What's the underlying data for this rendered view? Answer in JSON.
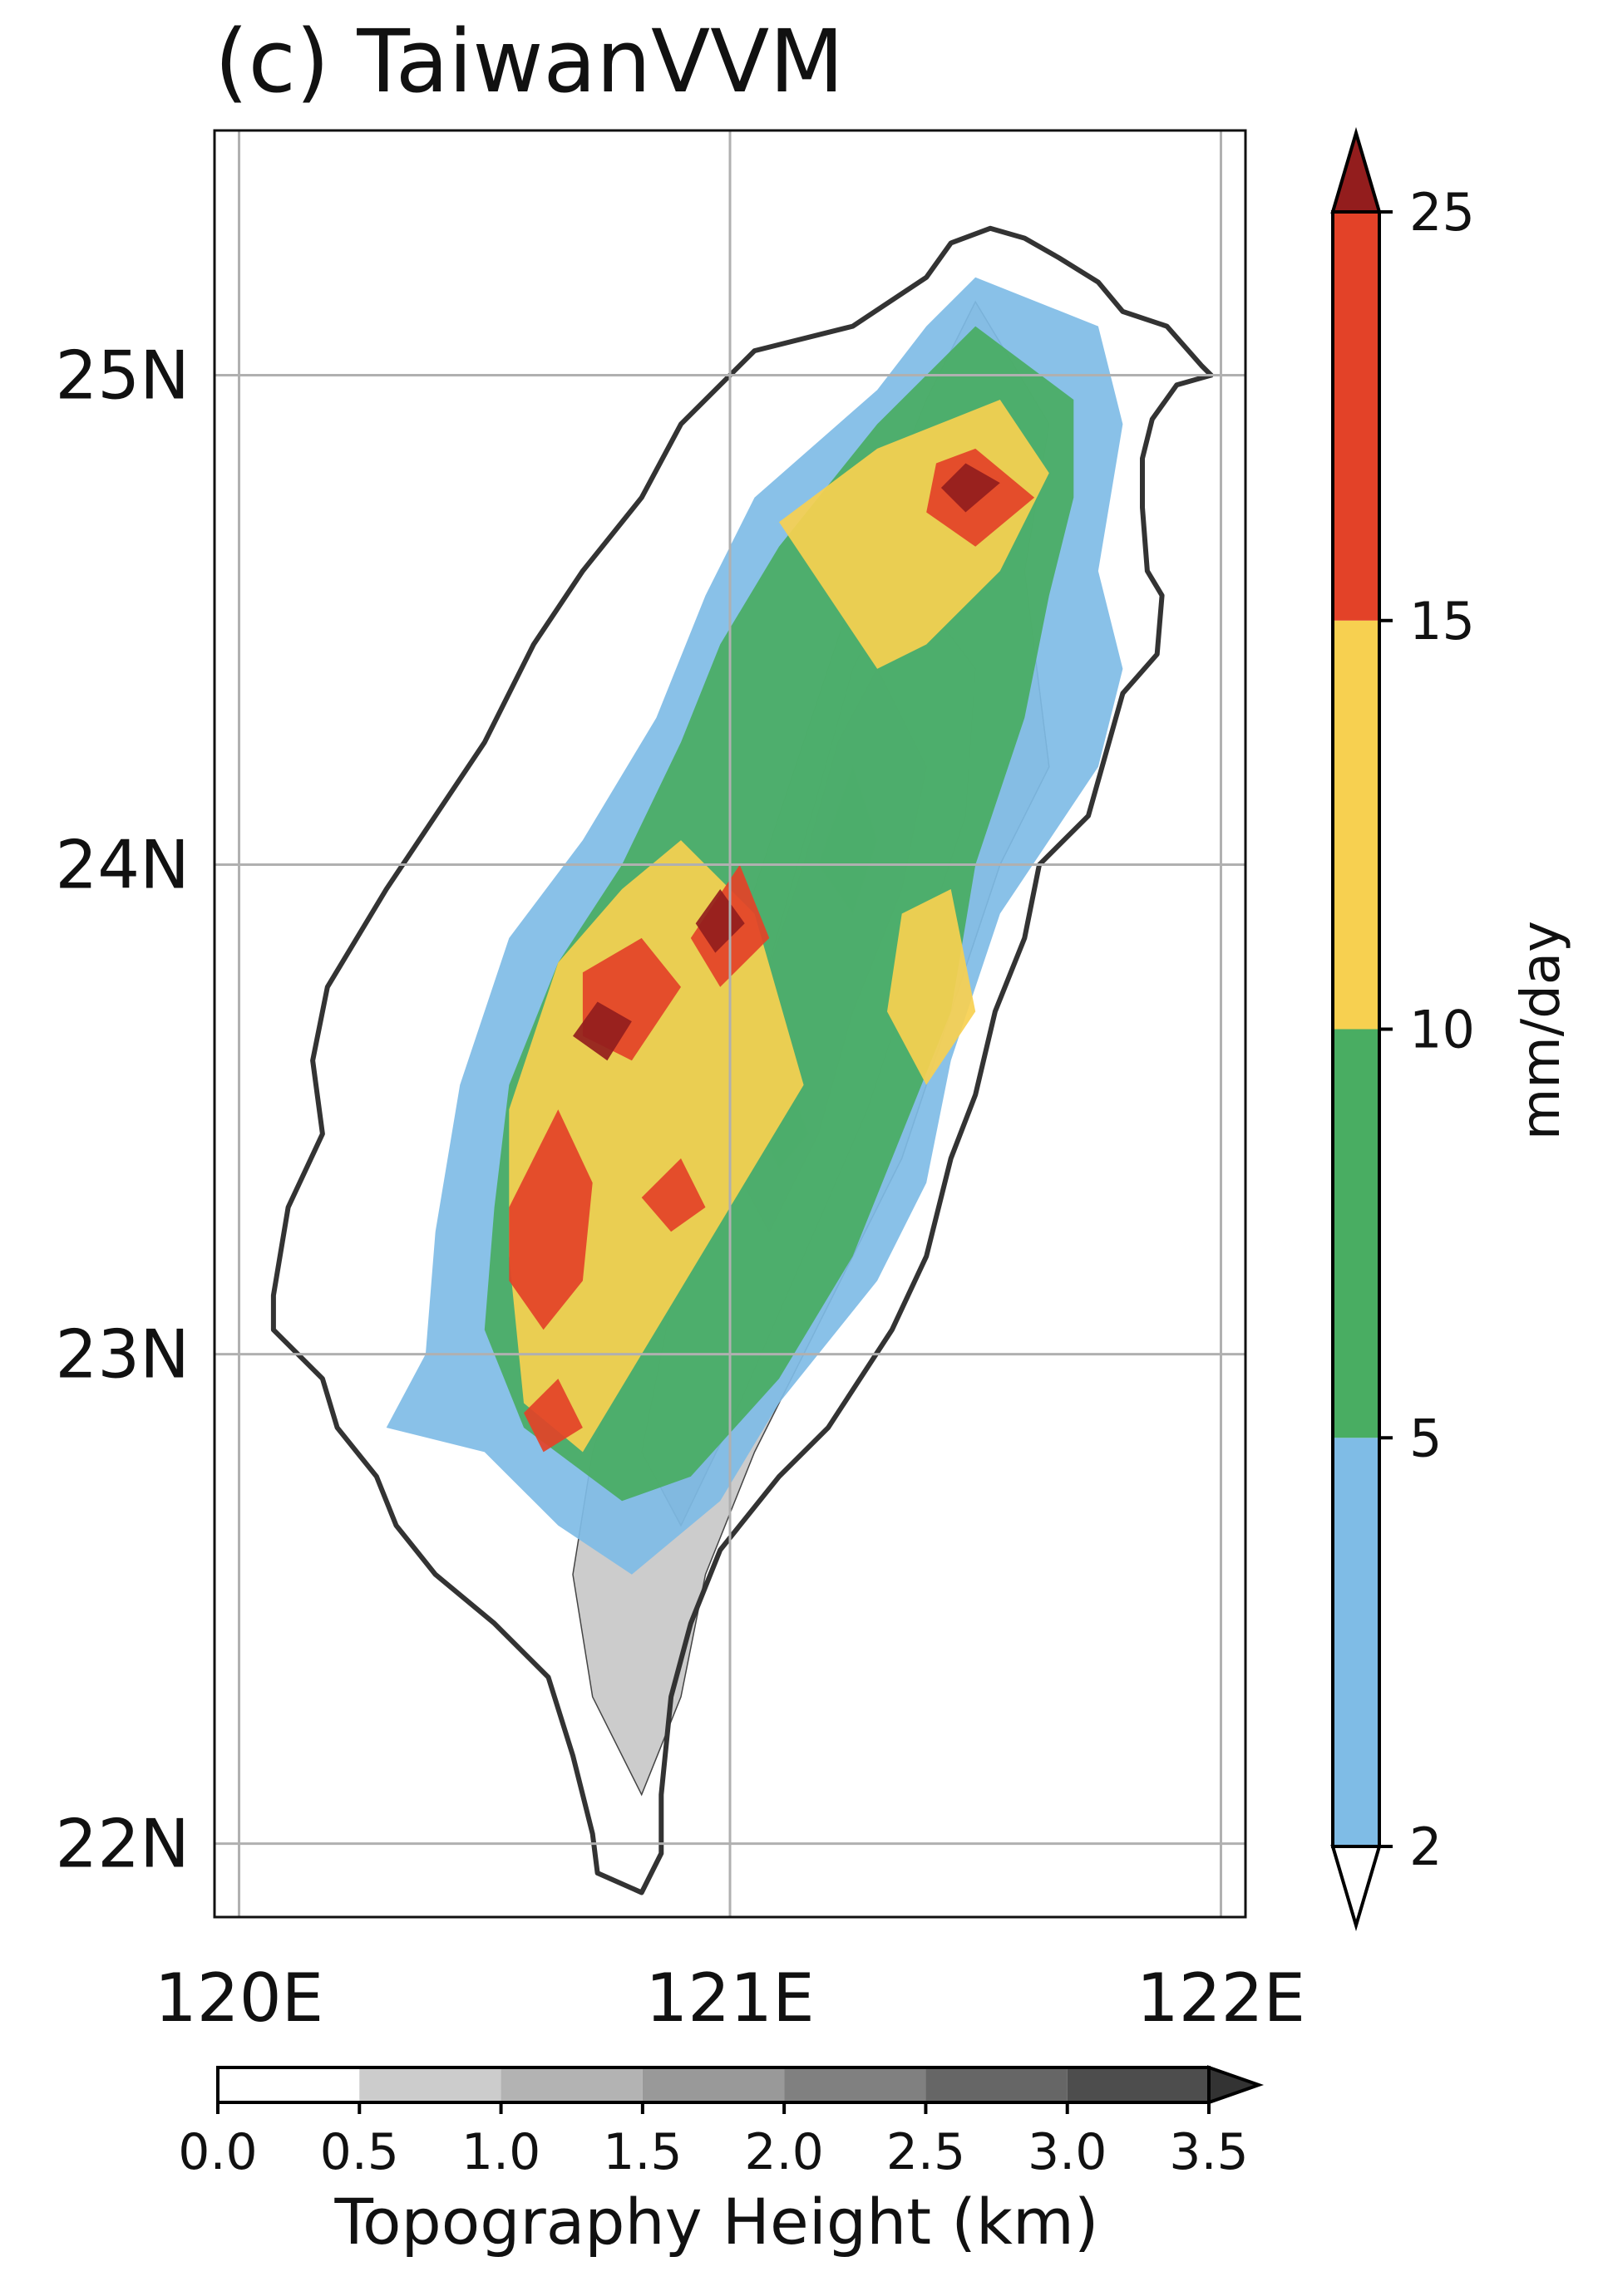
{
  "chart_data": {
    "type": "heatmap",
    "title": "(c) TaiwanVVM",
    "x_axis": {
      "ticks": [
        "120E",
        "121E",
        "122E"
      ],
      "tick_values": [
        120,
        121,
        122
      ],
      "range": [
        119.95,
        122.05
      ]
    },
    "y_axis": {
      "ticks": [
        "22N",
        "23N",
        "24N",
        "25N"
      ],
      "tick_values": [
        22,
        23,
        24,
        25
      ],
      "range": [
        21.85,
        25.5
      ]
    },
    "grid": true,
    "precip_colorbar": {
      "label": "mm/day",
      "orientation": "vertical",
      "placement": "right",
      "extend": "both",
      "levels": [
        2,
        5,
        10,
        15,
        25
      ],
      "tick_labels": [
        "2",
        "5",
        "10",
        "15",
        "25"
      ],
      "colors": [
        "#7fbce6",
        "#49ad62",
        "#f7d050",
        "#e34228"
      ],
      "under_color": "#ffffff",
      "over_color": "#931d1d"
    },
    "topo_colorbar": {
      "label": "Topography Height (km)",
      "orientation": "horizontal",
      "placement": "bottom",
      "extend": "max",
      "levels": [
        0.0,
        0.5,
        1.0,
        1.5,
        2.0,
        2.5,
        3.0,
        3.5
      ],
      "tick_labels": [
        "0.0",
        "0.5",
        "1.0",
        "1.5",
        "2.0",
        "2.5",
        "3.0",
        "3.5"
      ],
      "colors": [
        "#ffffff",
        "#cccccc",
        "#b3b3b3",
        "#999999",
        "#808080",
        "#666666",
        "#4d4d4d"
      ],
      "over_color": "#333333"
    },
    "coastline": [
      [
        121.53,
        25.3
      ],
      [
        121.6,
        25.28
      ],
      [
        121.67,
        25.24
      ],
      [
        121.75,
        25.19
      ],
      [
        121.8,
        25.13
      ],
      [
        121.89,
        25.1
      ],
      [
        121.96,
        25.02
      ],
      [
        121.98,
        25.0
      ],
      [
        121.91,
        24.98
      ],
      [
        121.86,
        24.91
      ],
      [
        121.84,
        24.83
      ],
      [
        121.84,
        24.73
      ],
      [
        121.85,
        24.6
      ],
      [
        121.88,
        24.55
      ],
      [
        121.87,
        24.43
      ],
      [
        121.8,
        24.35
      ],
      [
        121.73,
        24.1
      ],
      [
        121.63,
        24.0
      ],
      [
        121.6,
        23.85
      ],
      [
        121.54,
        23.7
      ],
      [
        121.5,
        23.53
      ],
      [
        121.45,
        23.4
      ],
      [
        121.4,
        23.2
      ],
      [
        121.33,
        23.05
      ],
      [
        121.2,
        22.85
      ],
      [
        121.1,
        22.75
      ],
      [
        120.98,
        22.6
      ],
      [
        120.92,
        22.45
      ],
      [
        120.88,
        22.3
      ],
      [
        120.86,
        22.1
      ],
      [
        120.86,
        21.98
      ],
      [
        120.82,
        21.9
      ],
      [
        120.73,
        21.94
      ],
      [
        120.72,
        22.02
      ],
      [
        120.68,
        22.18
      ],
      [
        120.63,
        22.34
      ],
      [
        120.52,
        22.45
      ],
      [
        120.4,
        22.55
      ],
      [
        120.32,
        22.65
      ],
      [
        120.28,
        22.75
      ],
      [
        120.2,
        22.85
      ],
      [
        120.17,
        22.95
      ],
      [
        120.07,
        23.05
      ],
      [
        120.07,
        23.12
      ],
      [
        120.1,
        23.3
      ],
      [
        120.17,
        23.45
      ],
      [
        120.15,
        23.6
      ],
      [
        120.18,
        23.75
      ],
      [
        120.3,
        23.95
      ],
      [
        120.4,
        24.1
      ],
      [
        120.5,
        24.25
      ],
      [
        120.6,
        24.45
      ],
      [
        120.7,
        24.6
      ],
      [
        120.82,
        24.75
      ],
      [
        120.9,
        24.9
      ],
      [
        121.05,
        25.05
      ],
      [
        121.25,
        25.1
      ],
      [
        121.4,
        25.2
      ],
      [
        121.45,
        25.27
      ],
      [
        121.53,
        25.3
      ]
    ],
    "precip_regions_mm_per_day": [
      {
        "level": 2,
        "lonlat": [
          [
            121.5,
            25.2
          ],
          [
            121.75,
            25.1
          ],
          [
            121.8,
            24.9
          ],
          [
            121.75,
            24.6
          ],
          [
            121.8,
            24.4
          ],
          [
            121.75,
            24.2
          ],
          [
            121.55,
            23.9
          ],
          [
            121.45,
            23.6
          ],
          [
            121.4,
            23.35
          ],
          [
            121.3,
            23.15
          ],
          [
            121.1,
            22.9
          ],
          [
            120.98,
            22.7
          ],
          [
            120.8,
            22.55
          ],
          [
            120.65,
            22.65
          ],
          [
            120.5,
            22.8
          ],
          [
            120.3,
            22.85
          ],
          [
            120.38,
            23.0
          ],
          [
            120.4,
            23.25
          ],
          [
            120.45,
            23.55
          ],
          [
            120.55,
            23.85
          ],
          [
            120.7,
            24.05
          ],
          [
            120.85,
            24.3
          ],
          [
            120.95,
            24.55
          ],
          [
            121.05,
            24.75
          ],
          [
            121.3,
            24.97
          ],
          [
            121.4,
            25.1
          ]
        ]
      },
      {
        "level": 5,
        "lonlat": [
          [
            121.5,
            25.1
          ],
          [
            121.7,
            24.95
          ],
          [
            121.7,
            24.75
          ],
          [
            121.65,
            24.55
          ],
          [
            121.6,
            24.3
          ],
          [
            121.5,
            24.0
          ],
          [
            121.45,
            23.7
          ],
          [
            121.35,
            23.45
          ],
          [
            121.25,
            23.2
          ],
          [
            121.1,
            22.95
          ],
          [
            120.92,
            22.75
          ],
          [
            120.78,
            22.7
          ],
          [
            120.58,
            22.85
          ],
          [
            120.5,
            23.05
          ],
          [
            120.52,
            23.3
          ],
          [
            120.55,
            23.55
          ],
          [
            120.65,
            23.8
          ],
          [
            120.78,
            24.0
          ],
          [
            120.9,
            24.25
          ],
          [
            120.98,
            24.45
          ],
          [
            121.1,
            24.65
          ],
          [
            121.3,
            24.9
          ]
        ]
      },
      {
        "level": 10,
        "lonlat": [
          [
            121.55,
            24.95
          ],
          [
            121.65,
            24.8
          ],
          [
            121.55,
            24.6
          ],
          [
            121.4,
            24.45
          ],
          [
            121.3,
            24.4
          ],
          [
            121.2,
            24.55
          ],
          [
            121.1,
            24.7
          ],
          [
            121.3,
            24.85
          ]
        ]
      },
      {
        "level": 10,
        "lonlat": [
          [
            120.9,
            24.05
          ],
          [
            121.05,
            23.9
          ],
          [
            121.15,
            23.55
          ],
          [
            121.0,
            23.3
          ],
          [
            120.85,
            23.05
          ],
          [
            120.7,
            22.8
          ],
          [
            120.58,
            22.9
          ],
          [
            120.55,
            23.2
          ],
          [
            120.55,
            23.5
          ],
          [
            120.65,
            23.8
          ],
          [
            120.78,
            23.95
          ]
        ]
      },
      {
        "level": 10,
        "lonlat": [
          [
            121.45,
            23.95
          ],
          [
            121.5,
            23.7
          ],
          [
            121.4,
            23.55
          ],
          [
            121.32,
            23.7
          ],
          [
            121.35,
            23.9
          ]
        ]
      },
      {
        "level": 15,
        "lonlat": [
          [
            121.5,
            24.85
          ],
          [
            121.62,
            24.75
          ],
          [
            121.5,
            24.65
          ],
          [
            121.4,
            24.72
          ],
          [
            121.42,
            24.82
          ]
        ]
      },
      {
        "level": 15,
        "lonlat": [
          [
            120.82,
            23.85
          ],
          [
            120.9,
            23.75
          ],
          [
            120.8,
            23.6
          ],
          [
            120.7,
            23.65
          ],
          [
            120.7,
            23.78
          ]
        ]
      },
      {
        "level": 15,
        "lonlat": [
          [
            121.02,
            24.0
          ],
          [
            121.08,
            23.85
          ],
          [
            120.98,
            23.75
          ],
          [
            120.92,
            23.85
          ]
        ]
      },
      {
        "level": 15,
        "lonlat": [
          [
            120.65,
            23.5
          ],
          [
            120.72,
            23.35
          ],
          [
            120.7,
            23.15
          ],
          [
            120.62,
            23.05
          ],
          [
            120.55,
            23.15
          ],
          [
            120.55,
            23.3
          ]
        ]
      },
      {
        "level": 15,
        "lonlat": [
          [
            120.9,
            23.4
          ],
          [
            120.95,
            23.3
          ],
          [
            120.88,
            23.25
          ],
          [
            120.82,
            23.32
          ]
        ]
      },
      {
        "level": 15,
        "lonlat": [
          [
            120.65,
            22.95
          ],
          [
            120.7,
            22.85
          ],
          [
            120.62,
            22.8
          ],
          [
            120.58,
            22.88
          ]
        ]
      },
      {
        "level": 25,
        "lonlat": [
          [
            120.73,
            23.72
          ],
          [
            120.8,
            23.68
          ],
          [
            120.75,
            23.6
          ],
          [
            120.68,
            23.65
          ]
        ]
      },
      {
        "level": 25,
        "lonlat": [
          [
            120.98,
            23.95
          ],
          [
            121.03,
            23.88
          ],
          [
            120.97,
            23.82
          ],
          [
            120.93,
            23.88
          ]
        ]
      },
      {
        "level": 25,
        "lonlat": [
          [
            121.48,
            24.82
          ],
          [
            121.55,
            24.78
          ],
          [
            121.48,
            24.72
          ],
          [
            121.43,
            24.77
          ]
        ]
      }
    ],
    "topography_regions_km": [
      {
        "level": 0.5,
        "lonlat": [
          [
            121.5,
            25.15
          ],
          [
            121.65,
            24.9
          ],
          [
            121.6,
            24.6
          ],
          [
            121.65,
            24.2
          ],
          [
            121.55,
            24.0
          ],
          [
            121.45,
            23.7
          ],
          [
            121.35,
            23.4
          ],
          [
            121.2,
            23.1
          ],
          [
            121.05,
            22.8
          ],
          [
            120.95,
            22.55
          ],
          [
            120.9,
            22.3
          ],
          [
            120.82,
            22.1
          ],
          [
            120.72,
            22.3
          ],
          [
            120.68,
            22.55
          ],
          [
            120.72,
            22.8
          ],
          [
            120.8,
            23.05
          ],
          [
            120.9,
            23.4
          ],
          [
            121.0,
            23.8
          ],
          [
            121.1,
            24.1
          ],
          [
            121.2,
            24.4
          ],
          [
            121.3,
            24.7
          ],
          [
            121.4,
            24.95
          ]
        ]
      },
      {
        "level": 1.5,
        "lonlat": [
          [
            121.35,
            24.6
          ],
          [
            121.5,
            24.4
          ],
          [
            121.48,
            24.1
          ],
          [
            121.38,
            23.8
          ],
          [
            121.28,
            23.5
          ],
          [
            121.15,
            23.2
          ],
          [
            121.02,
            22.9
          ],
          [
            120.9,
            22.65
          ],
          [
            120.82,
            22.8
          ],
          [
            120.88,
            23.1
          ],
          [
            120.98,
            23.45
          ],
          [
            121.08,
            23.8
          ],
          [
            121.18,
            24.15
          ],
          [
            121.25,
            24.4
          ]
        ]
      },
      {
        "level": 2.5,
        "lonlat": [
          [
            121.3,
            24.4
          ],
          [
            121.4,
            24.2
          ],
          [
            121.35,
            23.95
          ],
          [
            121.25,
            23.7
          ],
          [
            121.18,
            23.45
          ],
          [
            121.08,
            23.25
          ],
          [
            121.0,
            23.4
          ],
          [
            121.05,
            23.7
          ],
          [
            121.15,
            24.0
          ],
          [
            121.22,
            24.25
          ]
        ]
      },
      {
        "level": 3.5,
        "lonlat": [
          [
            121.25,
            24.2
          ],
          [
            121.3,
            24.05
          ],
          [
            121.25,
            23.9
          ],
          [
            121.18,
            24.0
          ]
        ]
      },
      {
        "level": 3.5,
        "lonlat": [
          [
            121.12,
            23.55
          ],
          [
            121.16,
            23.45
          ],
          [
            121.1,
            23.38
          ],
          [
            121.06,
            23.46
          ]
        ]
      }
    ]
  }
}
